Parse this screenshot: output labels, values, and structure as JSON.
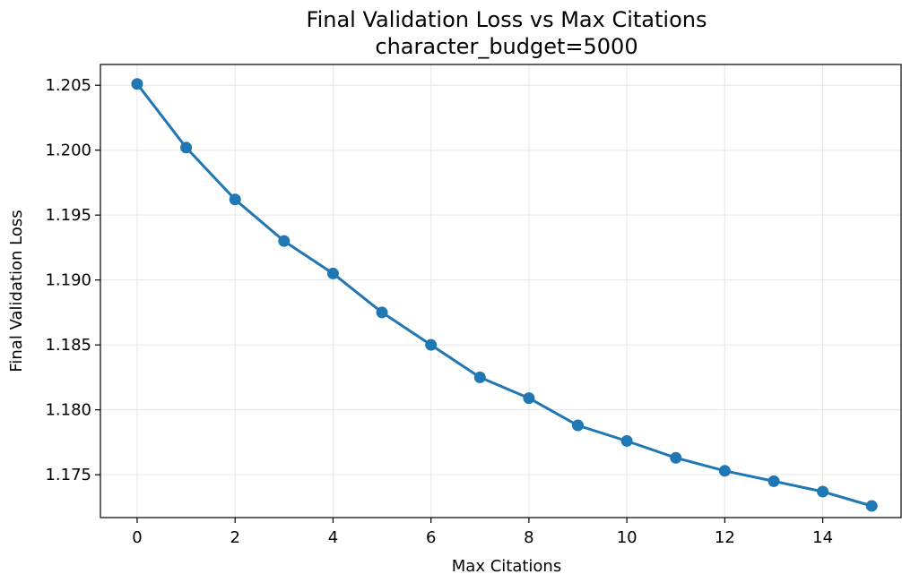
{
  "chart_data": {
    "type": "line",
    "title": "Final Validation Loss vs Max Citations",
    "subtitle": "character_budget=5000",
    "xlabel": "Max Citations",
    "ylabel": "Final Validation Loss",
    "xlim": [
      -0.75,
      15.6
    ],
    "ylim": [
      1.1717,
      1.2066
    ],
    "xticks": [
      0,
      2,
      4,
      6,
      8,
      10,
      12,
      14
    ],
    "yticks": [
      1.175,
      1.18,
      1.185,
      1.19,
      1.195,
      1.2,
      1.205
    ],
    "xtick_labels": [
      "0",
      "2",
      "4",
      "6",
      "8",
      "10",
      "12",
      "14"
    ],
    "ytick_labels": [
      "1.175",
      "1.180",
      "1.185",
      "1.190",
      "1.195",
      "1.200",
      "1.205"
    ],
    "grid": true,
    "legend": "none",
    "series": [
      {
        "color": "#1f77b4",
        "marker": "circle",
        "x": [
          0,
          1,
          2,
          3,
          4,
          5,
          6,
          7,
          8,
          9,
          10,
          11,
          12,
          13,
          14,
          15
        ],
        "y": [
          1.2051,
          1.2002,
          1.1962,
          1.193,
          1.1905,
          1.1875,
          1.185,
          1.1825,
          1.1809,
          1.1788,
          1.1776,
          1.1763,
          1.1753,
          1.1745,
          1.1737,
          1.1726
        ]
      }
    ]
  }
}
